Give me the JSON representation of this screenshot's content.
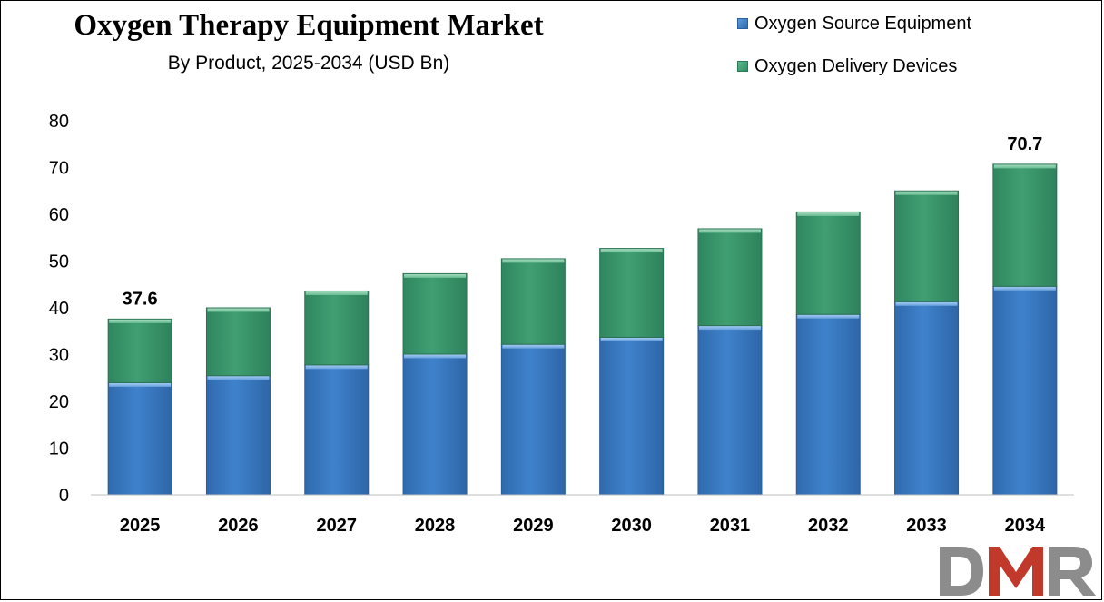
{
  "chart_data": {
    "type": "bar",
    "stacked": true,
    "title": "Oxygen Therapy Equipment Market",
    "subtitle": "By Product, 2025-2034 (USD Bn)",
    "categories": [
      "2025",
      "2026",
      "2027",
      "2028",
      "2029",
      "2030",
      "2031",
      "2032",
      "2033",
      "2034"
    ],
    "series": [
      {
        "name": "Oxygen Source Equipment",
        "color": "#3a7bc8",
        "values": [
          24.0,
          25.5,
          27.8,
          30.1,
          32.2,
          33.7,
          36.2,
          38.6,
          41.3,
          44.6
        ]
      },
      {
        "name": "Oxygen Delivery Devices",
        "color": "#3c9b6e",
        "values": [
          13.6,
          14.5,
          15.8,
          17.2,
          18.3,
          19.0,
          20.7,
          21.9,
          23.7,
          26.1
        ]
      }
    ],
    "data_labels": [
      {
        "category": "2025",
        "text": "37.6"
      },
      {
        "category": "2034",
        "text": "70.7"
      }
    ],
    "ylim": [
      0,
      80
    ],
    "yticks": [
      0,
      10,
      20,
      30,
      40,
      50,
      60,
      70,
      80
    ],
    "xlabel": "",
    "ylabel": "",
    "legend_position": "top-right",
    "grid": false
  },
  "logo": {
    "text": "DMR",
    "colors": [
      "#8c8c8c",
      "#c0392b"
    ]
  }
}
